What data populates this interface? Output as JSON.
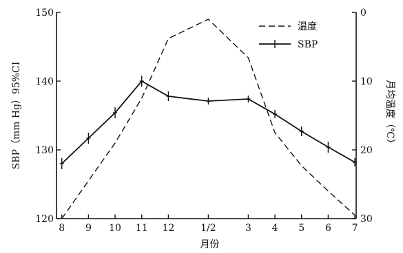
{
  "chart_data": {
    "type": "line",
    "categories": [
      "8",
      "9",
      "10",
      "11",
      "12",
      "1/2",
      "3",
      "4",
      "5",
      "6",
      "7"
    ],
    "x": [
      8,
      9,
      10,
      11,
      12,
      13.5,
      15,
      16,
      17,
      18,
      19
    ],
    "xlabel": "月份",
    "ylabel_left": "SBP（mm Hg）95%CI",
    "ylabel_right": "月均温度（℃）",
    "ylim_left": [
      120,
      150
    ],
    "yticks_left": [
      120,
      130,
      140,
      150
    ],
    "ylim_right": [
      0,
      30
    ],
    "right_axis_inverted": true,
    "yticks_right": [
      0,
      10,
      20,
      30
    ],
    "legend_position": "top-right",
    "series": [
      {
        "name": "温度",
        "axis": "right",
        "style": "dashed",
        "values": [
          30,
          24.5,
          19,
          12.5,
          3.8,
          1,
          6.6,
          17.5,
          22.3,
          26,
          29.5
        ]
      },
      {
        "name": "SBP",
        "axis": "left",
        "style": "solid-with-errorbars",
        "values": [
          128,
          131.7,
          135.4,
          140,
          137.8,
          137.1,
          137.4,
          135.2,
          132.7,
          130.4,
          128.2
        ],
        "ci": [
          0.8,
          0.8,
          0.8,
          0.8,
          0.7,
          0.5,
          0.5,
          0.6,
          0.7,
          0.8,
          0.6
        ]
      }
    ]
  }
}
